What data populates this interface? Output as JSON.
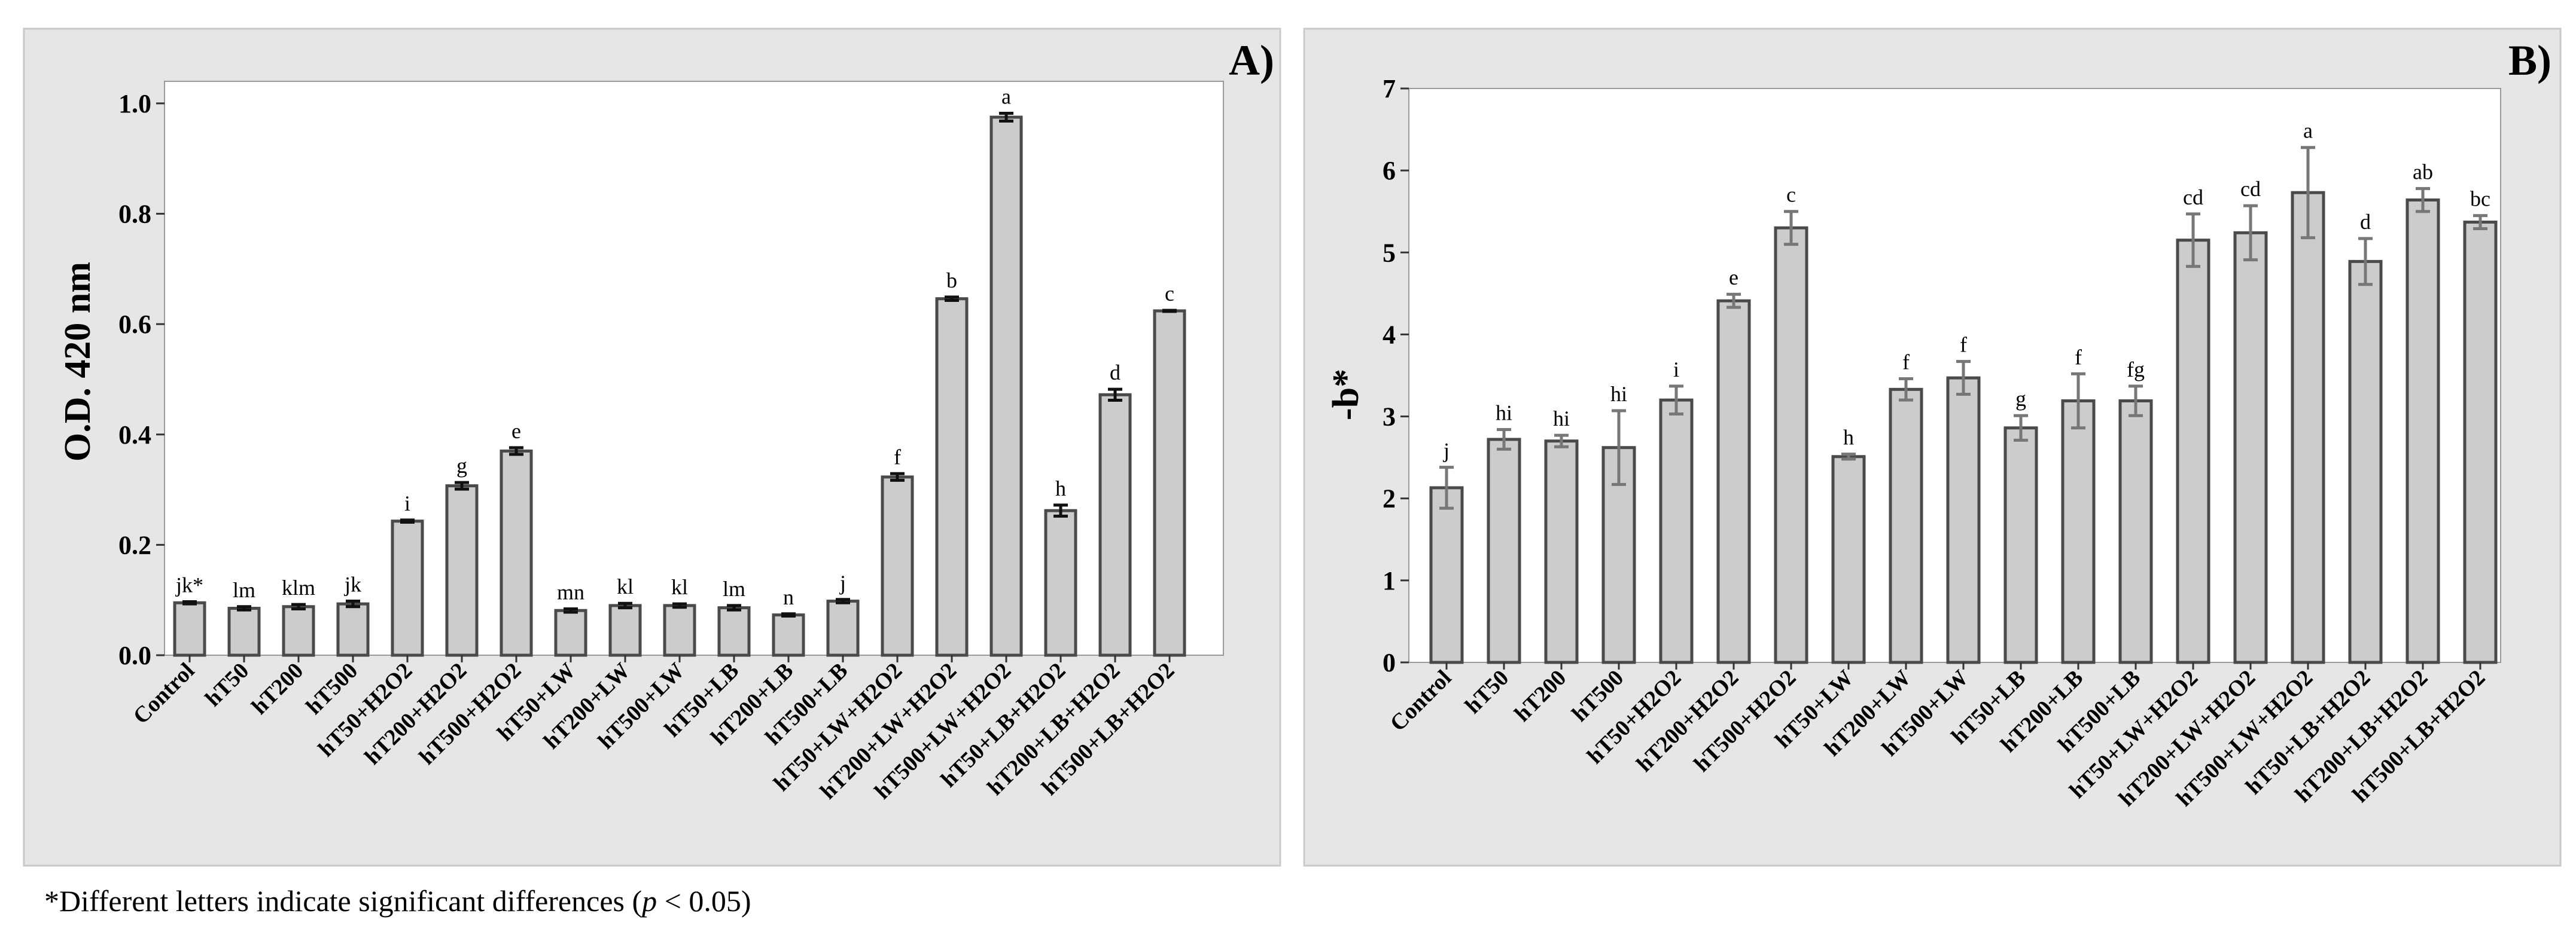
{
  "chart_data": [
    {
      "type": "bar",
      "panel_label": "A)",
      "ylabel": "O.D. 420 nm",
      "ylim": [
        0,
        1.04
      ],
      "yticks": [
        "0.0",
        "0.2",
        "0.4",
        "0.6",
        "0.8",
        "1.0"
      ],
      "categories": [
        "Control",
        "hT50",
        "hT200",
        "hT500",
        "hT50+H2O2",
        "hT200+H2O2",
        "hT500+H2O2",
        "hT50+LW",
        "hT200+LW",
        "hT500+LW",
        "hT50+LB",
        "hT200+LB",
        "hT500+LB",
        "hT50+LW+H2O2",
        "hT200+LW+H2O2",
        "hT500+LW+H2O2",
        "hT50+LB+H2O2",
        "hT200+LB+H2O2",
        "hT500+LB+H2O2"
      ],
      "values": [
        0.095,
        0.085,
        0.088,
        0.093,
        0.243,
        0.307,
        0.37,
        0.081,
        0.09,
        0.09,
        0.086,
        0.073,
        0.098,
        0.323,
        0.646,
        0.975,
        0.262,
        0.472,
        0.624
      ],
      "errors": [
        0.002,
        0.003,
        0.004,
        0.005,
        0.002,
        0.006,
        0.006,
        0.003,
        0.004,
        0.003,
        0.004,
        0.002,
        0.003,
        0.006,
        0.003,
        0.007,
        0.01,
        0.01,
        0.001
      ],
      "labels": [
        "jk*",
        "lm",
        "klm",
        "jk",
        "i",
        "g",
        "e",
        "mn",
        "kl",
        "kl",
        "lm",
        "n",
        "j",
        "f",
        "b",
        "a",
        "h",
        "d",
        "c"
      ]
    },
    {
      "type": "bar",
      "panel_label": "B)",
      "ylabel": "-b*",
      "ylim": [
        0,
        7
      ],
      "yticks": [
        "0",
        "1",
        "2",
        "3",
        "4",
        "5",
        "6",
        "7"
      ],
      "categories": [
        "Control",
        "hT50",
        "hT200",
        "hT500",
        "hT50+H2O2",
        "hT200+H2O2",
        "hT500+H2O2",
        "hT50+LW",
        "hT200+LW",
        "hT500+LW",
        "hT50+LB",
        "hT200+LB",
        "hT500+LB",
        "hT50+LW+H2O2",
        "hT200+LW+H2O2",
        "hT500+LW+H2O2",
        "hT50+LB+H2O2",
        "hT200+LB+H2O2",
        "hT500+LB+H2O2"
      ],
      "values": [
        2.13,
        2.72,
        2.7,
        2.62,
        3.2,
        4.41,
        5.3,
        2.51,
        3.33,
        3.47,
        2.86,
        3.19,
        3.19,
        5.15,
        5.24,
        5.73,
        4.89,
        5.64,
        5.37
      ],
      "errors": [
        0.25,
        0.12,
        0.07,
        0.45,
        0.17,
        0.08,
        0.2,
        0.03,
        0.13,
        0.2,
        0.15,
        0.33,
        0.18,
        0.32,
        0.33,
        0.55,
        0.28,
        0.14,
        0.08
      ],
      "labels": [
        "j",
        "hi",
        "hi",
        "hi",
        "i",
        "e",
        "c",
        "h",
        "f",
        "f",
        "g",
        "f",
        "fg",
        "cd",
        "cd",
        "a",
        "d",
        "ab",
        "bc"
      ]
    }
  ],
  "footnote": {
    "prefix": "*Different letters indicate significant differences (",
    "p": "p",
    "suffix": " < 0.05)"
  }
}
